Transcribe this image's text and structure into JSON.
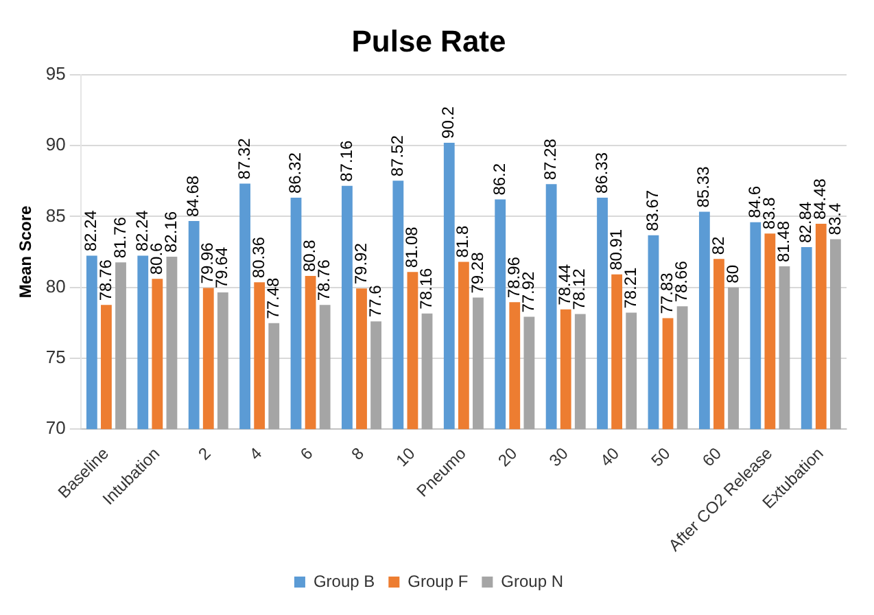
{
  "chart_data": {
    "type": "bar",
    "title": "Pulse Rate",
    "ylabel": "Mean Score",
    "categories": [
      "Baseline",
      "Intubation",
      "2",
      "4",
      "6",
      "8",
      "10",
      "Pneumo",
      "20",
      "30",
      "40",
      "50",
      "60",
      "After CO2 Release",
      "Extubation"
    ],
    "series": [
      {
        "name": "Group B",
        "color": "#5b9bd5",
        "values": [
          82.24,
          82.24,
          84.68,
          87.32,
          86.32,
          87.16,
          87.52,
          90.2,
          86.2,
          87.28,
          86.33,
          83.67,
          85.33,
          84.6,
          82.84
        ]
      },
      {
        "name": "Group F",
        "color": "#ed7d31",
        "values": [
          78.76,
          80.6,
          79.96,
          80.36,
          80.8,
          79.92,
          81.08,
          81.8,
          78.96,
          78.44,
          80.91,
          77.83,
          82,
          83.8,
          84.48
        ]
      },
      {
        "name": "Group N",
        "color": "#a5a5a5",
        "values": [
          81.76,
          82.16,
          79.64,
          77.48,
          78.76,
          77.6,
          78.16,
          79.28,
          77.92,
          78.12,
          78.21,
          78.66,
          80,
          81.48,
          83.4
        ]
      }
    ],
    "ylim": [
      70,
      95
    ],
    "yticks": [
      70,
      75,
      80,
      85,
      90,
      95
    ],
    "grid": "y",
    "legend": "bottom",
    "data_labels": true
  }
}
